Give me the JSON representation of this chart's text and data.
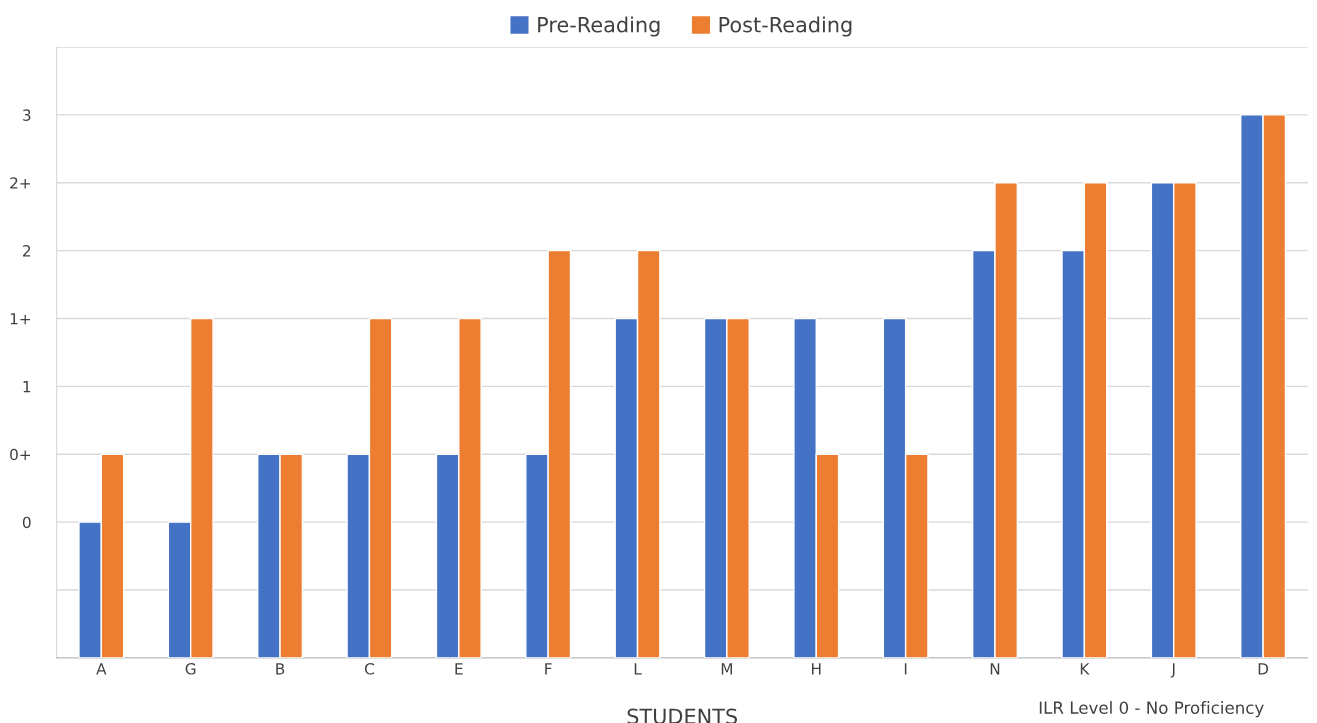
{
  "chart_data": {
    "type": "bar",
    "categories": [
      "A",
      "G",
      "B",
      "C",
      "E",
      "F",
      "L",
      "M",
      "H",
      "I",
      "N",
      "K",
      "J",
      "D"
    ],
    "series": [
      {
        "name": "Pre-Reading",
        "color": "#4472c4",
        "values": [
          1,
          1,
          1.5,
          1.5,
          1.5,
          1.5,
          2.5,
          2.5,
          2.5,
          2.5,
          3,
          3,
          3.5,
          4
        ],
        "base": [
          -1,
          -1,
          -1,
          -1,
          -1,
          -1,
          -1,
          -1,
          -1,
          -1,
          -1,
          -1,
          -1,
          -1
        ]
      },
      {
        "name": "Post-Reading",
        "color": "#ed7d31",
        "values": [
          1.5,
          2.5,
          1.5,
          2.5,
          2.5,
          3,
          3,
          2.5,
          1.5,
          1.5,
          3.5,
          3.5,
          3.5,
          4
        ],
        "base": [
          -1,
          -1,
          -1,
          -1,
          -1,
          -1,
          -1,
          -1,
          -1,
          -1,
          -1,
          -1,
          -1,
          -1
        ]
      }
    ],
    "xlabel": "STUDENTS",
    "ylim": [
      -1,
      3.5
    ],
    "yticks": [
      {
        "value": -1,
        "label": null
      },
      {
        "value": -0.5,
        "label": null
      },
      0,
      {
        "value": 0.5,
        "label": "0+"
      },
      1,
      {
        "value": 1.5,
        "label": "1+"
      },
      2,
      {
        "value": 2.5,
        "label": "2+"
      },
      3,
      {
        "value": 3.5,
        "label": null
      }
    ],
    "grid": "y",
    "legend": "top",
    "annotations": [
      "ILR Level 0 - No Proficiency"
    ]
  }
}
